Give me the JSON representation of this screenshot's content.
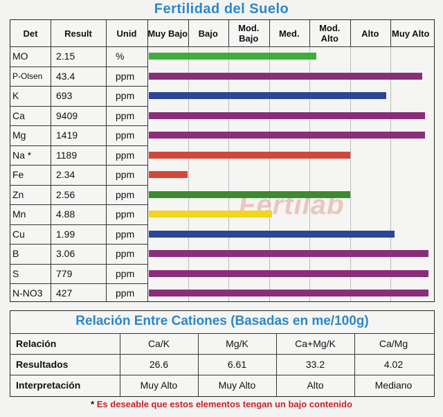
{
  "title": "Fertilidad  del  Suelo",
  "columns": {
    "det": "Det",
    "result": "Result",
    "unid": "Unid",
    "levels": [
      "Muy Bajo",
      "Bajo",
      "Mod. Bajo",
      "Med.",
      "Mod. Alto",
      "Alto",
      "Muy Alto"
    ]
  },
  "rows": [
    {
      "det": "MO",
      "result": "2.15",
      "unid": "%",
      "level": 0.6,
      "color": "#3fae3a"
    },
    {
      "det": "P-Olsen",
      "result": "43.4",
      "unid": "ppm",
      "level": 0.98,
      "color": "#8a2e7a"
    },
    {
      "det": "K",
      "result": "693",
      "unid": "ppm",
      "level": 0.85,
      "color": "#2c4596"
    },
    {
      "det": "Ca",
      "result": "9409",
      "unid": "ppm",
      "level": 0.99,
      "color": "#8a2e7a"
    },
    {
      "det": "Mg",
      "result": "1419",
      "unid": "ppm",
      "level": 0.99,
      "color": "#8a2e7a"
    },
    {
      "det": "Na *",
      "result": "1189",
      "unid": "ppm",
      "level": 0.72,
      "color": "#d1483a"
    },
    {
      "det": "Fe",
      "result": "2.34",
      "unid": "ppm",
      "level": 0.14,
      "color": "#d1483a"
    },
    {
      "det": "Zn",
      "result": "2.56",
      "unid": "ppm",
      "level": 0.72,
      "color": "#3d8a30"
    },
    {
      "det": "Mn",
      "result": "4.88",
      "unid": "ppm",
      "level": 0.44,
      "color": "#f3d51b"
    },
    {
      "det": "Cu",
      "result": "1.99",
      "unid": "ppm",
      "level": 0.88,
      "color": "#2c4596"
    },
    {
      "det": "B",
      "result": "3.06",
      "unid": "ppm",
      "level": 1.0,
      "color": "#8a2e7a"
    },
    {
      "det": "S",
      "result": "779",
      "unid": "ppm",
      "level": 1.0,
      "color": "#8a2e7a"
    },
    {
      "det": "N-NO3",
      "result": "427",
      "unid": "ppm",
      "level": 1.0,
      "color": "#8a2e7a"
    }
  ],
  "watermark": "Fertilab",
  "cations": {
    "title": "Relación Entre Cationes (Basadas en me/100g)",
    "row_labels": [
      "Relación",
      "Resultados",
      "Interpretación"
    ],
    "cols": [
      {
        "relacion": "Ca/K",
        "resultado": "26.6",
        "interpretacion": "Muy Alto"
      },
      {
        "relacion": "Mg/K",
        "resultado": "6.61",
        "interpretacion": "Muy Alto"
      },
      {
        "relacion": "Ca+Mg/K",
        "resultado": "33.2",
        "interpretacion": "Alto"
      },
      {
        "relacion": "Ca/Mg",
        "resultado": "4.02",
        "interpretacion": "Mediano"
      }
    ]
  },
  "footnote": {
    "star": "*",
    "text": "Es deseable que estos elementos tengan un bajo contenido"
  }
}
